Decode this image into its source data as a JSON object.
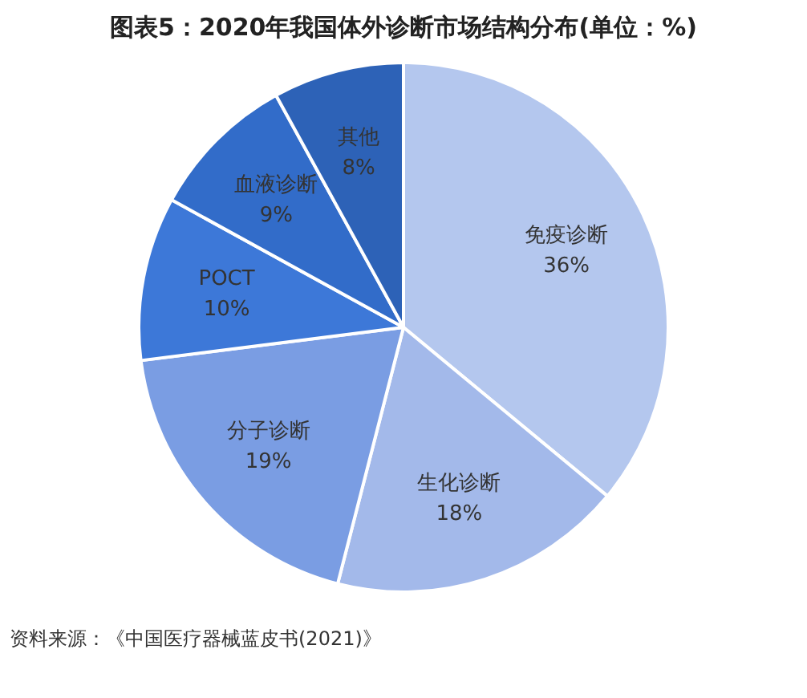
{
  "chart_data": {
    "type": "pie",
    "title": "图表5：2020年我国体外诊断市场结构分布(单位：%)",
    "categories": [
      "免疫诊断",
      "生化诊断",
      "分子诊断",
      "POCT",
      "血液诊断",
      "其他"
    ],
    "values": [
      36,
      18,
      19,
      10,
      9,
      8
    ],
    "value_labels": [
      "36%",
      "18%",
      "19%",
      "10%",
      "9%",
      "8%"
    ],
    "colors": [
      "#b4c7ee",
      "#a3b9ea",
      "#7a9de3",
      "#3d78d8",
      "#326cc9",
      "#2d62b7"
    ],
    "legend": false,
    "annotations": [
      "资料来源：《中国医疗器械蓝皮书(2021)》"
    ]
  }
}
